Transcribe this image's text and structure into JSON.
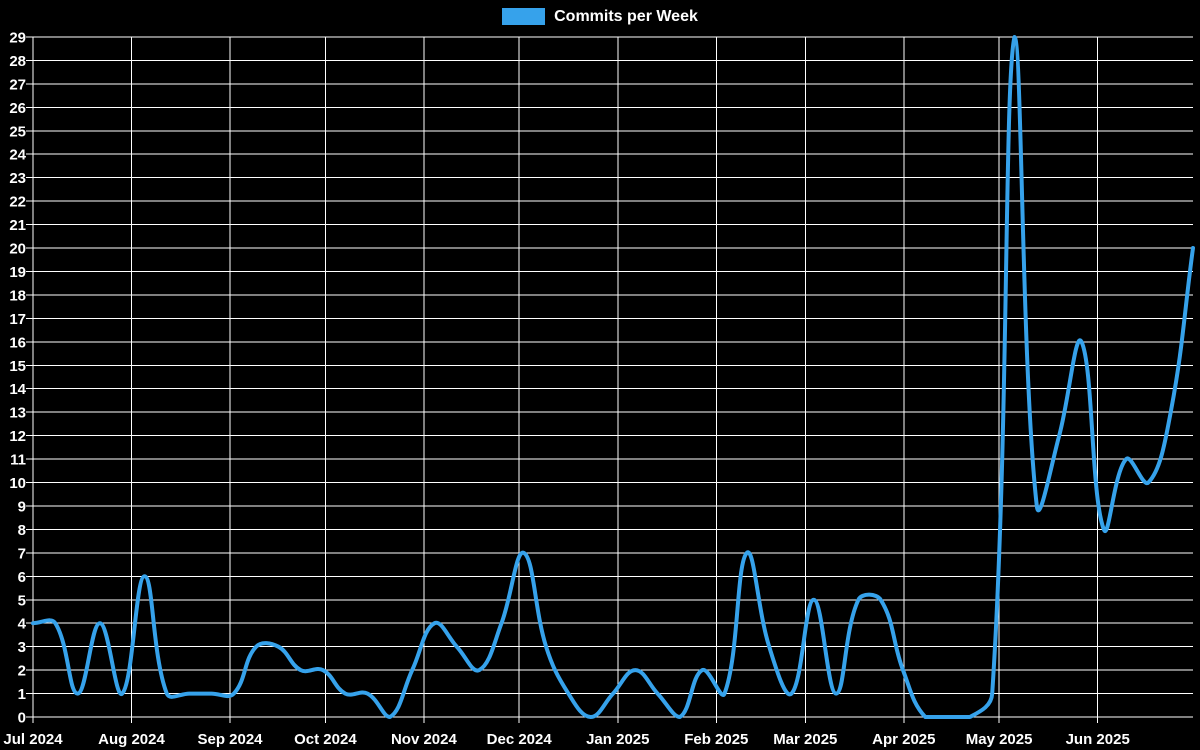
{
  "page": {
    "background": "#000000"
  },
  "legend": {
    "label": "Commits per Week",
    "swatch_color": "#36a2eb"
  },
  "chart_data": {
    "type": "line",
    "title": "Commits per Week",
    "legend_position": "top",
    "grid": true,
    "background": "#000000",
    "grid_color": "#ffffff",
    "tick_color": "#ffffff",
    "line_color": "#36a2eb",
    "line_width": 4,
    "x_tick_labels": [
      "Jul 2024",
      "Aug 2024",
      "Sep 2024",
      "Oct 2024",
      "Nov 2024",
      "Dec 2024",
      "Jan 2025",
      "Feb 2025",
      "Mar 2025",
      "Apr 2025",
      "May 2025",
      "Jun 2025"
    ],
    "y_ticks": {
      "min": 0,
      "max": 29,
      "step": 1
    },
    "series": [
      {
        "name": "Commits per Week",
        "color": "#36a2eb",
        "weeks": [
          "2024-07-01",
          "2024-07-08",
          "2024-07-15",
          "2024-07-22",
          "2024-07-29",
          "2024-08-05",
          "2024-08-12",
          "2024-08-19",
          "2024-08-26",
          "2024-09-02",
          "2024-09-09",
          "2024-09-16",
          "2024-09-23",
          "2024-09-30",
          "2024-10-07",
          "2024-10-14",
          "2024-10-21",
          "2024-10-28",
          "2024-11-04",
          "2024-11-11",
          "2024-11-18",
          "2024-11-25",
          "2024-12-02",
          "2024-12-09",
          "2024-12-16",
          "2024-12-23",
          "2024-12-30",
          "2025-01-06",
          "2025-01-13",
          "2025-01-20",
          "2025-01-27",
          "2025-02-03",
          "2025-02-10",
          "2025-02-17",
          "2025-02-24",
          "2025-03-03",
          "2025-03-10",
          "2025-03-17",
          "2025-03-24",
          "2025-03-31",
          "2025-04-07",
          "2025-04-14",
          "2025-04-21",
          "2025-04-28",
          "2025-05-05",
          "2025-05-12",
          "2025-05-19",
          "2025-05-26",
          "2025-06-02",
          "2025-06-09",
          "2025-06-16",
          "2025-06-23",
          "2025-06-30"
        ],
        "values": [
          4,
          4,
          1,
          4,
          1,
          6,
          1,
          1,
          1,
          1,
          3,
          3,
          2,
          2,
          1,
          1,
          0,
          2,
          4,
          3,
          2,
          4,
          7,
          3,
          1,
          0,
          1,
          2,
          1,
          0,
          2,
          1,
          7,
          3,
          1,
          5,
          1,
          5,
          5,
          2,
          0,
          0,
          0,
          1,
          29,
          9,
          12,
          16,
          8,
          11,
          10,
          13,
          20
        ]
      }
    ]
  }
}
